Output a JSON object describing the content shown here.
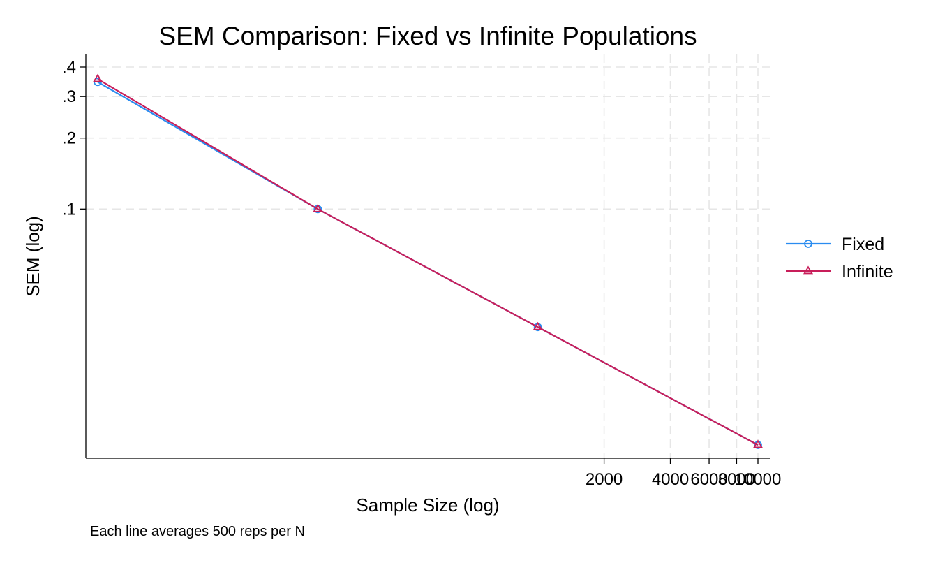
{
  "chart_data": {
    "type": "line",
    "title": "SEM Comparison: Fixed vs Infinite Populations",
    "xlabel": "Sample Size (log)",
    "ylabel": "SEM (log)",
    "note": "Each line averages 500 reps per N",
    "x_scale": "log",
    "y_scale": "log",
    "xlim": [
      10,
      10000
    ],
    "ylim": [
      0.01,
      0.4
    ],
    "x_ticks": [
      {
        "value": 2000,
        "label": "2000"
      },
      {
        "value": 4000,
        "label": "4000"
      },
      {
        "value": 6000,
        "label": "6000"
      },
      {
        "value": 8000,
        "label": "8000"
      },
      {
        "value": 10000,
        "label": "10000"
      }
    ],
    "y_ticks": [
      {
        "value": 0.1,
        "label": ".1"
      },
      {
        "value": 0.2,
        "label": ".2"
      },
      {
        "value": 0.3,
        "label": ".3"
      },
      {
        "value": 0.4,
        "label": ".4"
      }
    ],
    "x": [
      10,
      100,
      1000,
      10000
    ],
    "series": [
      {
        "name": "Fixed",
        "values": [
          0.346,
          0.1,
          0.0316,
          0.01
        ],
        "color": "#2a8cf0",
        "marker": "circle"
      },
      {
        "name": "Infinite",
        "values": [
          0.356,
          0.1,
          0.0316,
          0.01
        ],
        "color": "#c81e5a",
        "marker": "triangle"
      }
    ],
    "grid": true,
    "legend_position": "right"
  }
}
